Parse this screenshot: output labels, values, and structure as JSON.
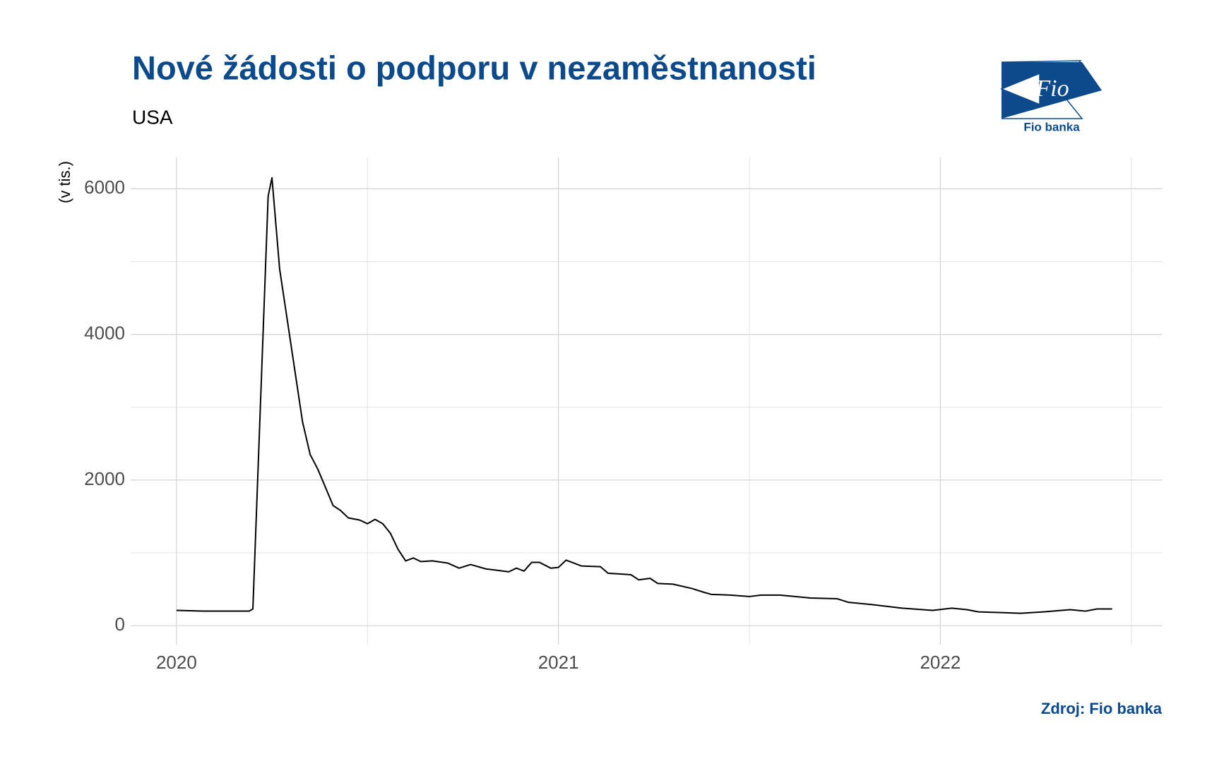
{
  "chart_data": {
    "type": "line",
    "title": "Nové žádosti o podporu v nezaměstnanosti",
    "subtitle": "USA",
    "y_label": "(v tis.)",
    "source": "Zdroj: Fio banka",
    "logo_mark": "Fio",
    "logo_text": "Fio banka",
    "x": [
      2020.0,
      2020.07,
      2020.19,
      2020.2,
      2020.24,
      2020.25,
      2020.27,
      2020.31,
      2020.33,
      2020.35,
      2020.37,
      2020.41,
      2020.43,
      2020.45,
      2020.48,
      2020.5,
      2020.52,
      2020.54,
      2020.56,
      2020.58,
      2020.6,
      2020.62,
      2020.64,
      2020.67,
      2020.71,
      2020.74,
      2020.77,
      2020.81,
      2020.84,
      2020.87,
      2020.89,
      2020.91,
      2020.93,
      2020.95,
      2020.98,
      2021.0,
      2021.02,
      2021.06,
      2021.11,
      2021.13,
      2021.19,
      2021.21,
      2021.24,
      2021.26,
      2021.3,
      2021.35,
      2021.38,
      2021.4,
      2021.45,
      2021.5,
      2021.53,
      2021.58,
      2021.66,
      2021.73,
      2021.76,
      2021.82,
      2021.9,
      2021.98,
      2022.03,
      2022.07,
      2022.1,
      2022.16,
      2022.21,
      2022.27,
      2022.34,
      2022.38,
      2022.41,
      2022.45
    ],
    "series": [
      {
        "name": "Nové žádosti",
        "color": "#000000",
        "values": [
          210,
          200,
          200,
          230,
          5900,
          6150,
          4900,
          3500,
          2800,
          2350,
          2150,
          1650,
          1580,
          1480,
          1450,
          1400,
          1460,
          1400,
          1270,
          1050,
          890,
          930,
          880,
          890,
          860,
          790,
          840,
          780,
          760,
          740,
          790,
          750,
          870,
          870,
          790,
          800,
          900,
          820,
          810,
          720,
          700,
          630,
          650,
          580,
          570,
          510,
          460,
          430,
          420,
          400,
          420,
          420,
          380,
          370,
          320,
          290,
          240,
          210,
          240,
          220,
          190,
          180,
          170,
          190,
          220,
          200,
          230,
          230
        ]
      }
    ],
    "xlim": [
      2019.88,
      2022.58
    ],
    "xticks": [
      2020,
      2021,
      2022
    ],
    "xminor": [
      2020.5,
      2021.5,
      2022.5
    ],
    "ylim": [
      -260,
      6430
    ],
    "yticks": [
      0,
      2000,
      4000,
      6000
    ],
    "yminor": [
      1000,
      3000,
      5000
    ],
    "grid": true,
    "legend": false
  }
}
